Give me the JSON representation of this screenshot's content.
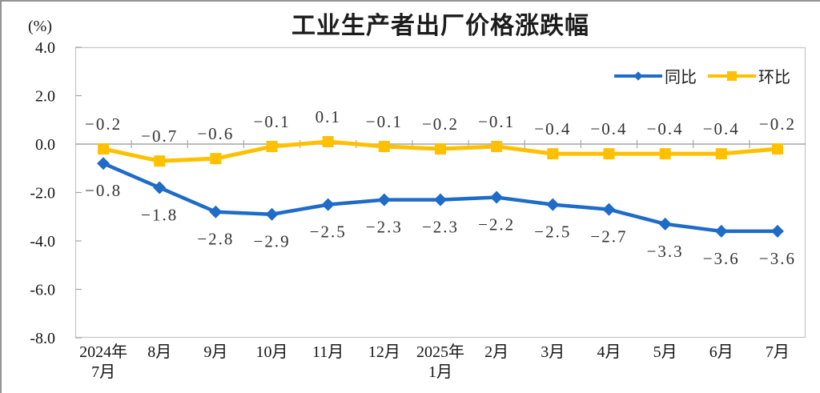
{
  "chart_data": {
    "type": "line",
    "title": "工业生产者出厂价格涨跌幅",
    "unit_label": "(%)",
    "categories": [
      "2024年\n7月",
      "8月",
      "9月",
      "10月",
      "11月",
      "12月",
      "2025年\n1月",
      "2月",
      "3月",
      "4月",
      "5月",
      "6月",
      "7月"
    ],
    "series": [
      {
        "name": "同比",
        "marker": "diamond",
        "color": "#1e6bc8",
        "labels_position": "below",
        "values": [
          -0.8,
          -1.8,
          -2.8,
          -2.9,
          -2.5,
          -2.3,
          -2.3,
          -2.2,
          -2.5,
          -2.7,
          -3.3,
          -3.6,
          -3.6
        ]
      },
      {
        "name": "环比",
        "marker": "square",
        "color": "#ffc000",
        "labels_position": "above",
        "values": [
          -0.2,
          -0.7,
          -0.6,
          -0.1,
          0.1,
          -0.1,
          -0.2,
          -0.1,
          -0.4,
          -0.4,
          -0.4,
          -0.4,
          -0.2
        ]
      }
    ],
    "y_axis": {
      "ticks": [
        "4.0",
        "2.0",
        "0.0",
        "-2.0",
        "-4.0",
        "-6.0",
        "-8.0"
      ],
      "min": -8.0,
      "max": 4.0
    },
    "grid": "zero-baseline-only",
    "legend_position": "top-right-inside",
    "style": {
      "plot_border_color": "#c9c9c9",
      "axis_line_color": "#a6a6a6",
      "axis_text_color": "#141414",
      "data_label_color": "#333333",
      "frame_border_color": "#949494"
    }
  }
}
